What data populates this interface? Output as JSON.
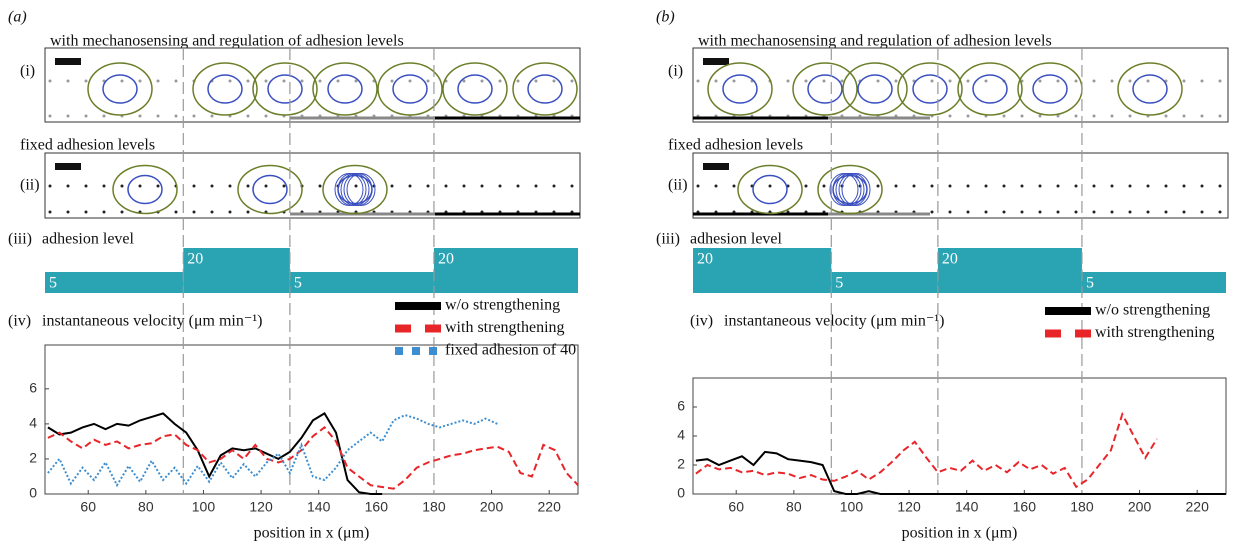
{
  "chart_data": [
    {
      "type": "line",
      "panel_label": "(a)",
      "row_labels": [
        "(i)",
        "(ii)",
        "(iii)",
        "(iv)"
      ],
      "row_titles": [
        "with mechanosensing and regulation of adhesion levels",
        "fixed adhesion levels",
        "adhesion level",
        "instantaneous velocity (μm min⁻¹)"
      ],
      "adhesion_levels": [
        5,
        20,
        5,
        20
      ],
      "boundaries": [
        93,
        130,
        180
      ],
      "xlabel": "position in x (μm)",
      "xlim": [
        45,
        230
      ],
      "xticks": [
        60,
        80,
        100,
        120,
        140,
        160,
        180,
        200,
        220
      ],
      "ylim": [
        0,
        8.5
      ],
      "yticks": [
        0,
        2,
        4,
        6
      ],
      "x": [
        46,
        50,
        54,
        58,
        62,
        66,
        70,
        74,
        78,
        82,
        86,
        90,
        94,
        98,
        102,
        106,
        110,
        114,
        118,
        122,
        126,
        130,
        134,
        138,
        142,
        146,
        150,
        154,
        158,
        162,
        166,
        170,
        174,
        178,
        182,
        186,
        190,
        194,
        198,
        202,
        206,
        210,
        214,
        218,
        222,
        226,
        230
      ],
      "series": [
        {
          "name": "w/o strengthening",
          "color": "#000000",
          "style": "solid",
          "values": [
            3.8,
            3.4,
            3.5,
            3.8,
            4.0,
            3.7,
            4.0,
            3.9,
            4.2,
            4.4,
            4.6,
            4.0,
            3.5,
            2.5,
            1.0,
            2.2,
            2.6,
            2.5,
            2.6,
            2.3,
            2.0,
            2.4,
            3.2,
            4.2,
            4.6,
            3.5,
            0.8,
            0.1,
            0,
            0,
            null,
            null,
            null,
            null,
            null,
            null,
            null,
            null,
            null,
            null,
            null,
            null,
            null,
            null,
            null,
            null,
            null
          ]
        },
        {
          "name": "with strengthening",
          "color": "#e8262a",
          "style": "dashed",
          "values": [
            3.2,
            3.5,
            3.0,
            2.6,
            3.1,
            2.8,
            3.0,
            2.6,
            2.8,
            2.9,
            3.3,
            3.4,
            2.8,
            2.5,
            1.8,
            2.0,
            2.5,
            2.0,
            2.8,
            2.0,
            1.8,
            2.0,
            2.5,
            3.3,
            3.8,
            3.0,
            1.5,
            1.0,
            0.5,
            0.4,
            0.3,
            0.8,
            1.5,
            1.8,
            2.0,
            2.2,
            2.3,
            2.5,
            2.6,
            2.7,
            2.4,
            1.2,
            1.0,
            2.8,
            2.5,
            1.2,
            0.5
          ]
        },
        {
          "name": "fixed adhesion of 40",
          "color": "#3d8ed0",
          "style": "dotted",
          "values": [
            1.2,
            2.0,
            0.6,
            1.5,
            0.8,
            1.8,
            0.5,
            1.6,
            0.7,
            1.9,
            0.8,
            1.5,
            0.6,
            1.6,
            0.7,
            1.8,
            0.9,
            1.7,
            1.0,
            1.8,
            2.3,
            1.2,
            2.8,
            1.0,
            0.8,
            1.5,
            2.5,
            3.0,
            3.5,
            3.0,
            4.2,
            4.5,
            4.3,
            4.0,
            3.8,
            4.0,
            4.2,
            4.0,
            4.3,
            4.0,
            null,
            null,
            null,
            null,
            null,
            null,
            null
          ]
        }
      ]
    },
    {
      "type": "line",
      "panel_label": "(b)",
      "row_labels": [
        "(i)",
        "(ii)",
        "(iii)",
        "(iv)"
      ],
      "row_titles": [
        "with mechanosensing and regulation of adhesion levels",
        "fixed adhesion levels",
        "adhesion level",
        "instantaneous velocity (μm min⁻¹)"
      ],
      "adhesion_levels": [
        20,
        5,
        20,
        5
      ],
      "boundaries": [
        93,
        130,
        180
      ],
      "xlabel": "position in x (μm)",
      "xlim": [
        45,
        230
      ],
      "xticks": [
        60,
        80,
        100,
        120,
        140,
        160,
        180,
        200,
        220
      ],
      "ylim": [
        0,
        8
      ],
      "yticks": [
        0,
        2,
        4,
        6
      ],
      "x": [
        46,
        50,
        54,
        58,
        62,
        66,
        70,
        74,
        78,
        82,
        86,
        90,
        94,
        98,
        102,
        106,
        110,
        114,
        118,
        122,
        126,
        130,
        134,
        138,
        142,
        146,
        150,
        154,
        158,
        162,
        166,
        170,
        174,
        178,
        182,
        186,
        190,
        194,
        198,
        202,
        206,
        210,
        214,
        218,
        222,
        226,
        230
      ],
      "series": [
        {
          "name": "w/o strengthening",
          "color": "#000000",
          "style": "solid",
          "values": [
            2.3,
            2.4,
            2.0,
            2.3,
            2.6,
            2.0,
            2.9,
            2.8,
            2.4,
            2.3,
            2.2,
            2.0,
            0.2,
            0,
            0,
            0.2,
            0,
            0,
            0,
            0,
            0,
            0,
            0,
            0,
            0,
            0,
            0,
            0,
            0,
            0,
            0,
            0,
            0,
            0,
            0,
            0,
            0,
            0,
            0,
            0,
            0,
            0,
            0,
            0,
            0,
            0,
            0
          ]
        },
        {
          "name": "with strengthening",
          "color": "#e8262a",
          "style": "dashed",
          "values": [
            1.4,
            2.0,
            1.7,
            1.8,
            1.5,
            1.6,
            1.3,
            1.5,
            1.4,
            1.1,
            1.3,
            1.0,
            0.9,
            1.2,
            1.6,
            1.0,
            1.5,
            2.2,
            3.0,
            3.6,
            2.5,
            1.5,
            1.8,
            1.6,
            2.3,
            1.6,
            2.0,
            1.5,
            2.2,
            1.7,
            2.0,
            1.4,
            1.8,
            0.5,
            1.0,
            2.0,
            3.0,
            5.5,
            4.0,
            2.5,
            3.8,
            null,
            null,
            null,
            null,
            null,
            null
          ]
        }
      ]
    }
  ]
}
